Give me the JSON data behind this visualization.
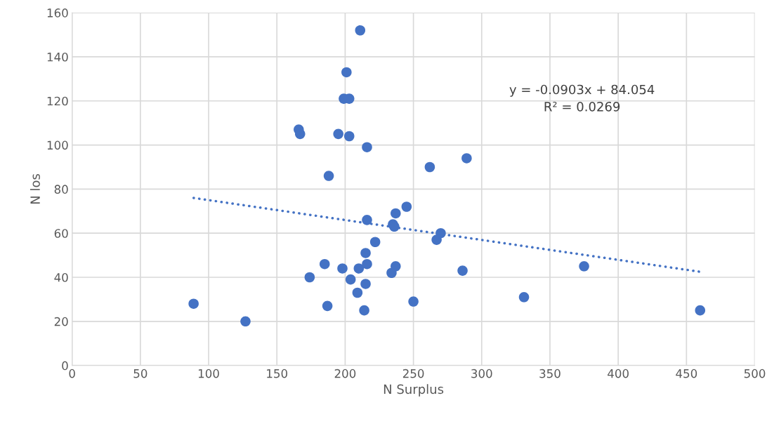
{
  "chart_data": {
    "type": "scatter",
    "xlabel": "N Surplus",
    "ylabel": "N los",
    "xlim": [
      0,
      500
    ],
    "xticks": [
      0,
      50,
      100,
      150,
      200,
      250,
      300,
      350,
      400,
      450,
      500
    ],
    "ylim": [
      0,
      160
    ],
    "yticks": [
      0,
      20,
      40,
      60,
      80,
      100,
      120,
      140,
      160
    ],
    "grid": true,
    "marker": "circle",
    "series": [
      {
        "color": "#4472c4",
        "x": [
          89,
          127,
          166,
          167,
          174,
          185,
          187,
          188,
          195,
          198,
          199,
          201,
          203,
          203,
          204,
          209,
          210,
          211,
          214,
          215,
          215,
          216,
          216,
          216,
          222,
          234,
          235,
          236,
          237,
          237,
          245,
          250,
          262,
          267,
          270,
          286,
          289,
          331,
          375,
          460
        ],
        "values": [
          28,
          20,
          107,
          105,
          40,
          46,
          27,
          86,
          105,
          44,
          121,
          133,
          121,
          104,
          39,
          33,
          44,
          152,
          25,
          37,
          51,
          46,
          99,
          66,
          56,
          42,
          64,
          63,
          45,
          69,
          72,
          29,
          90,
          57,
          60,
          43,
          94,
          31,
          45,
          25
        ]
      },
      {
        "type": "line",
        "color": "#4472c4",
        "line_style": "dotted",
        "marker": "none",
        "x": [
          89,
          460
        ],
        "values": [
          76,
          42.5
        ]
      }
    ],
    "annotations": [
      "y = -0.0903x + 84.054\nR² = 0.0269"
    ]
  }
}
